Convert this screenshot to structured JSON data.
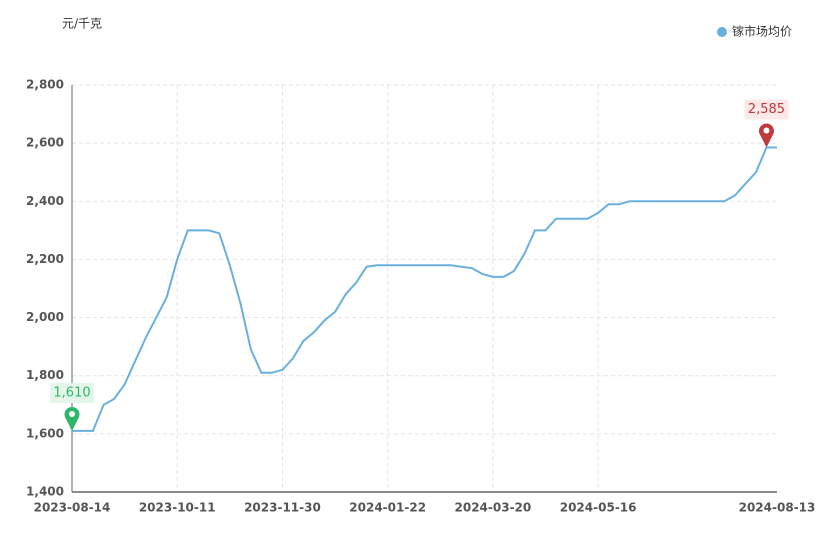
{
  "chart_data": {
    "type": "line",
    "y_axis_label": "元/千克",
    "categories": [
      "2023-08-14",
      null,
      null,
      null,
      null,
      null,
      null,
      null,
      null,
      null,
      "2023-10-11",
      null,
      null,
      null,
      null,
      null,
      null,
      null,
      null,
      null,
      "2023-11-30",
      null,
      null,
      null,
      null,
      null,
      null,
      null,
      null,
      null,
      "2024-01-22",
      null,
      null,
      null,
      null,
      null,
      null,
      null,
      null,
      null,
      "2024-03-20",
      null,
      null,
      null,
      null,
      null,
      null,
      null,
      null,
      null,
      "2024-05-16",
      null,
      null,
      null,
      null,
      null,
      null,
      null,
      null,
      null,
      null,
      null,
      null,
      null,
      null,
      null,
      null,
      "2024-08-13"
    ],
    "series": [
      {
        "name": "镓市场均价",
        "color": "#6ab0de",
        "values": [
          1610,
          1610,
          1610,
          1700,
          1720,
          1770,
          1850,
          1930,
          2000,
          2070,
          2200,
          2300,
          2300,
          2300,
          2290,
          2180,
          2050,
          1890,
          1810,
          1810,
          1820,
          1860,
          1920,
          1950,
          1990,
          2020,
          2080,
          2120,
          2175,
          2180,
          2180,
          2180,
          2180,
          2180,
          2180,
          2180,
          2180,
          2175,
          2170,
          2150,
          2140,
          2140,
          2160,
          2220,
          2300,
          2300,
          2340,
          2340,
          2340,
          2340,
          2360,
          2390,
          2390,
          2400,
          2400,
          2400,
          2400,
          2400,
          2400,
          2400,
          2400,
          2400,
          2400,
          2420,
          2460,
          2500,
          2585,
          2585
        ]
      }
    ],
    "markers": [
      {
        "kind": "max",
        "label": "2,585",
        "color": "#c0393b"
      },
      {
        "kind": "min",
        "label": "1,610",
        "color": "#2fb56a"
      }
    ],
    "ylim": [
      1400,
      2800
    ],
    "yticks": [
      {
        "value": 1400,
        "label": "1,400"
      },
      {
        "value": 1600,
        "label": "1,600"
      },
      {
        "value": 1800,
        "label": "1,800"
      },
      {
        "value": 2000,
        "label": "2,000"
      },
      {
        "value": 2200,
        "label": "2,200"
      },
      {
        "value": 2400,
        "label": "2,400"
      },
      {
        "value": 2600,
        "label": "2,600"
      },
      {
        "value": 2800,
        "label": "2,800"
      }
    ],
    "grid": true,
    "legend": "top-right"
  }
}
